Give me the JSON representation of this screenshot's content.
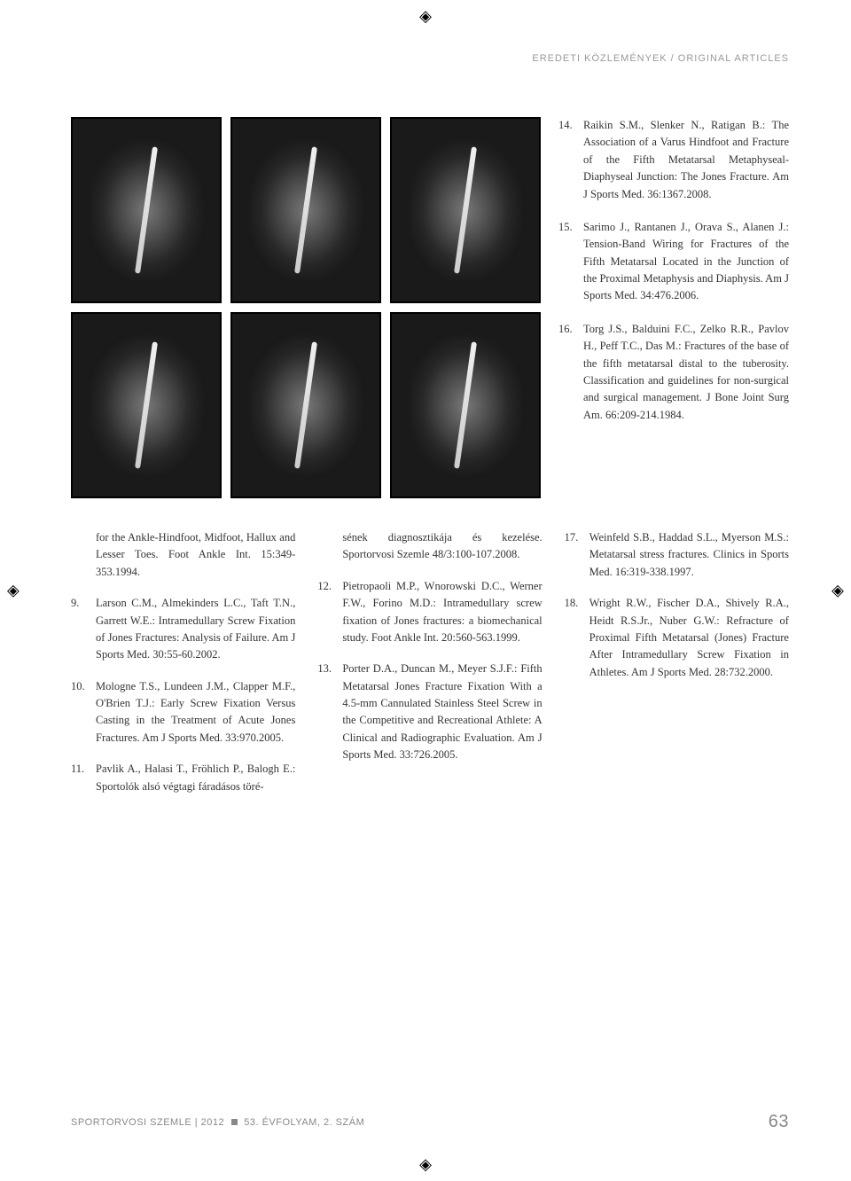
{
  "crop_glyph": "◈",
  "header": "EREDETI KÖZLEMÉNYEK / ORIGINAL ARTICLES",
  "right_refs": [
    {
      "n": "14.",
      "t": "Raikin S.M., Slenker N., Ratigan B.: The Association of a Varus Hindfoot and Fracture of the Fifth Metatarsal Metaphyseal-Diaphyseal Junction: The Jones Fracture. Am J Sports Med. 36:1367.2008."
    },
    {
      "n": "15.",
      "t": "Sarimo J., Rantanen J., Orava S., Alanen J.: Tension-Band Wiring for Fractures of the Fifth Metatarsal Located in the Junction of the Proximal Metaphysis and Diaphysis. Am J Sports Med. 34:476.2006."
    },
    {
      "n": "16.",
      "t": "Torg J.S., Balduini F.C., Zelko R.R., Pavlov H., Peff T.C., Das M.: Fractures of the base of the fifth metatarsal distal to the tuberosity. Classification and guidelines for non-surgical and surgical management. J Bone Joint Surg Am. 66:209-214.1984."
    }
  ],
  "col1": {
    "hang": "for the Ankle-Hindfoot, Midfoot, Hallux and Lesser Toes. Foot Ankle Int. 15:349-353.1994.",
    "refs": [
      {
        "n": "9.",
        "t": "Larson C.M., Almekinders L.C., Taft T.N., Garrett W.E.: Intramedullary Screw Fixation of Jones Fractures: Analysis of Failure. Am J Sports Med. 30:55-60.2002."
      },
      {
        "n": "10.",
        "t": "Mologne T.S., Lundeen J.M., Clapper M.F., O'Brien T.J.: Early Screw Fixation Versus Casting in the Treatment of Acute Jones Fractures. Am J Sports Med. 33:970.2005."
      },
      {
        "n": "11.",
        "t": "Pavlik A., Halasi T., Fröhlich P., Balogh E.: Sportolók alsó végtagi fáradásos töré-"
      }
    ]
  },
  "col2": {
    "hang": "sének diagnosztikája és kezelése. Sportorvosi Szemle 48/3:100-107.2008.",
    "refs": [
      {
        "n": "12.",
        "t": "Pietropaoli M.P., Wnorowski D.C., Werner F.W., Forino M.D.: Intramedullary screw fixation of Jones fractures: a biomechanical study. Foot Ankle Int. 20:560-563.1999."
      },
      {
        "n": "13.",
        "t": "Porter D.A., Duncan M., Meyer S.J.F.: Fifth Metatarsal Jones Fracture Fixation With a 4.5-mm Cannulated Stainless Steel Screw in the Competitive and Recreational Athlete: A Clinical and Radiographic Evaluation. Am J Sports Med. 33:726.2005."
      }
    ]
  },
  "col3": {
    "refs": [
      {
        "n": "17.",
        "t": "Weinfeld S.B., Haddad S.L., Myerson M.S.: Metatarsal stress fractures. Clinics in Sports Med. 16:319-338.1997."
      },
      {
        "n": "18.",
        "t": "Wright R.W., Fischer D.A., Shively R.A., Heidt R.S.Jr., Nuber G.W.: Refracture of Proximal Fifth Metatarsal (Jones) Fracture After Intramedullary Screw Fixation in Athletes. Am J Sports Med. 28:732.2000."
      }
    ]
  },
  "footer": {
    "left": "SPORTORVOSI SZEMLE | 2012",
    "mid": "53. ÉVFOLYAM, 2. SZÁM",
    "page": "63"
  }
}
